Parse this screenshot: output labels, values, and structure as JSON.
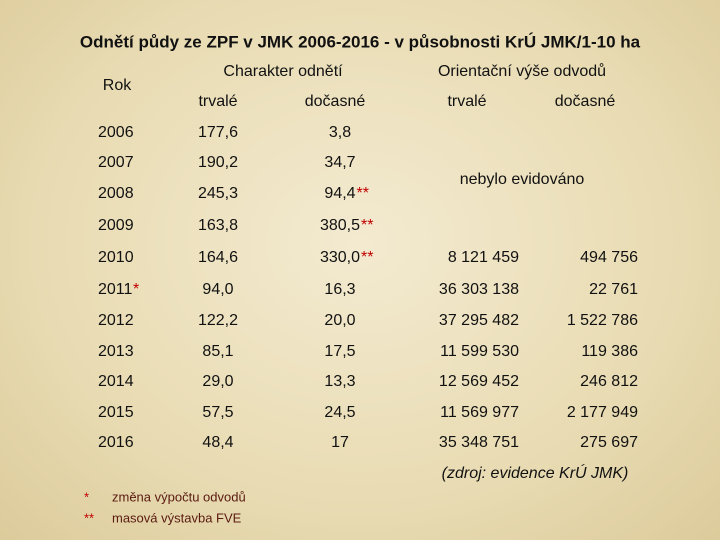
{
  "title": "Odnětí půdy ze ZPF v JMK 2006-2016 - v působnosti KrÚ JMK/1-10 ha",
  "header": {
    "rok": "Rok",
    "charakter": "Charakter odnětí",
    "odvody": "Orientační výše odvodů",
    "trvale": "trvalé",
    "docasne": "dočasné",
    "odvody_trvale": "trvalé",
    "odvody_docasne": "dočasné"
  },
  "table": {
    "rows": [
      {
        "year": "2006",
        "trvale": "177,6",
        "docasne": "3,8"
      },
      {
        "year": "2007",
        "trvale": "190,2",
        "docasne": "34,7"
      },
      {
        "year": "2008",
        "trvale": "245,3",
        "docasne": "94,4",
        "docasne_mark": "**"
      },
      {
        "year": "2009",
        "trvale": "163,8",
        "docasne": "380,5",
        "docasne_mark": "**"
      },
      {
        "year": "2010",
        "trvale": "164,6",
        "docasne": "330,0",
        "docasne_mark": "**",
        "odvody_trvale": "8 121 459",
        "odvody_docasne": "494 756"
      },
      {
        "year": "2011",
        "year_mark": "*",
        "trvale": "94,0",
        "docasne": "16,3",
        "odvody_trvale": "36 303 138",
        "odvody_docasne": "22 761"
      },
      {
        "year": "2012",
        "trvale": "122,2",
        "docasne": "20,0",
        "odvody_trvale": "37 295 482",
        "odvody_docasne": "1 522 786"
      },
      {
        "year": "2013",
        "trvale": "85,1",
        "docasne": "17,5",
        "odvody_trvale": "11 599 530",
        "odvody_docasne": "119 386"
      },
      {
        "year": "2014",
        "trvale": "29,0",
        "docasne": "13,3",
        "odvody_trvale": "12 569 452",
        "odvody_docasne": "246 812"
      },
      {
        "year": "2015",
        "trvale": "57,5",
        "docasne": "24,5",
        "odvody_trvale": "11 569 977",
        "odvody_docasne": "2 177 949"
      },
      {
        "year": "2016",
        "trvale": "48,4",
        "docasne": "17",
        "odvody_trvale": "35 348 751",
        "odvody_docasne": "275 697"
      }
    ],
    "not_recorded": "nebylo evidováno"
  },
  "source": "(zdroj: evidence KrÚ JMK)",
  "footnotes": [
    {
      "mark": "*",
      "text": "změna výpočtu odvodů"
    },
    {
      "mark": "**",
      "text": "masová výstavba FVE"
    }
  ]
}
